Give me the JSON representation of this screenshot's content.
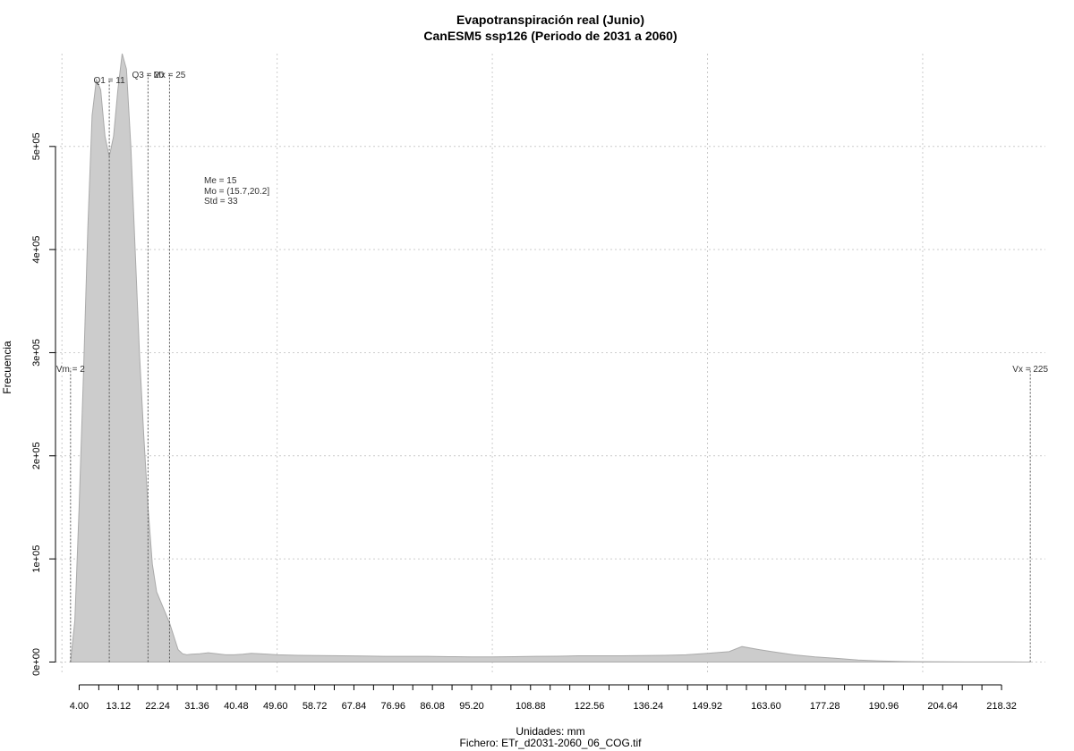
{
  "chart_data": {
    "type": "area",
    "title": "Evapotranspiración real (Junio)",
    "subtitle": "CanESM5 ssp126 (Periodo de 2031 a 2060)",
    "xlabel": "Unidades: mm",
    "ylabel": "Frecuencia",
    "file": "Fichero: ETr_d2031-2060_06_COG.tif",
    "xlim": [
      -1.5,
      228.5
    ],
    "ylim": [
      -10000,
      590000
    ],
    "x_ticks": [
      4.0,
      8.56,
      13.12,
      17.68,
      22.24,
      26.8,
      31.36,
      35.92,
      40.48,
      45.04,
      49.6,
      54.16,
      58.72,
      63.28,
      67.84,
      72.4,
      76.96,
      81.52,
      86.08,
      90.64,
      95.2,
      99.76,
      104.32,
      108.88,
      113.44,
      118.0,
      122.56,
      127.12,
      131.68,
      136.24,
      140.8,
      145.36,
      149.92,
      154.48,
      159.04,
      163.6,
      168.16,
      172.72,
      177.28,
      181.84,
      186.4,
      190.96,
      195.52,
      200.08,
      204.64,
      209.2,
      213.76,
      218.32
    ],
    "x_tick_labels": [
      "4.00",
      "",
      "13.12",
      "",
      "22.24",
      "",
      "31.36",
      "",
      "40.48",
      "",
      "49.60",
      "",
      "58.72",
      "",
      "67.84",
      "",
      "76.96",
      "",
      "86.08",
      "",
      "95.20",
      "",
      "",
      "108.88",
      "",
      "",
      "122.56",
      "",
      "",
      "136.24",
      "",
      "",
      "149.92",
      "",
      "",
      "163.60",
      "",
      "",
      "177.28",
      "",
      "",
      "190.96",
      "",
      "",
      "204.64",
      "",
      "",
      "218.32"
    ],
    "y_ticks": [
      0,
      100000,
      200000,
      300000,
      400000,
      500000
    ],
    "y_tick_labels": [
      "0e+00",
      "1e+05",
      "2e+05",
      "3e+05",
      "4e+05",
      "5e+05"
    ],
    "x_grid": [
      0,
      50,
      100,
      150,
      200
    ],
    "y_grid": [
      0,
      100000,
      200000,
      300000,
      400000,
      500000
    ],
    "grid": true,
    "fill_color": "#cccccc",
    "stroke_color": "#aaaaaa",
    "series": [
      {
        "x": [
          2,
          3,
          4,
          5,
          6,
          7,
          8,
          9,
          10,
          11,
          12,
          13,
          14,
          15,
          16,
          17,
          18,
          19,
          20,
          21,
          22,
          23,
          24,
          25,
          26,
          27,
          28,
          29,
          30,
          32,
          34,
          36,
          38,
          40,
          42,
          44,
          46,
          48,
          50,
          55,
          60,
          65,
          70,
          75,
          80,
          85,
          90,
          95,
          100,
          105,
          110,
          115,
          120,
          125,
          130,
          135,
          140,
          145,
          150,
          155,
          158,
          162,
          165,
          170,
          175,
          180,
          185,
          190,
          195,
          200,
          205,
          210,
          215,
          220,
          225
        ],
        "y": [
          0,
          40000,
          150000,
          280000,
          420000,
          530000,
          565000,
          555000,
          510000,
          490000,
          510000,
          555000,
          590000,
          575000,
          500000,
          400000,
          300000,
          220000,
          150000,
          95000,
          68000,
          58000,
          48000,
          38000,
          25000,
          12000,
          8000,
          7000,
          7500,
          8000,
          9000,
          8000,
          7000,
          7000,
          7500,
          8500,
          8000,
          7500,
          7000,
          6500,
          6200,
          6000,
          5800,
          5500,
          5500,
          5500,
          5200,
          5000,
          5000,
          5200,
          5500,
          5600,
          6000,
          6000,
          6000,
          6200,
          6500,
          7000,
          8500,
          10000,
          15000,
          12000,
          10000,
          7000,
          5000,
          3500,
          2000,
          1000,
          500,
          300,
          200,
          100,
          50,
          20,
          0
        ]
      }
    ],
    "vlines": [
      {
        "x": 2,
        "label": "Vm = 2",
        "y_top": 285000
      },
      {
        "x": 11,
        "label": "Q1 = 11",
        "y_top": 565000
      },
      {
        "x": 20,
        "label": "Q3 = 20",
        "y_top": 570000
      },
      {
        "x": 25,
        "label": "Mx = 25",
        "y_top": 570000
      },
      {
        "x": 225,
        "label": "Vx = 225",
        "y_top": 285000
      }
    ],
    "stats": [
      "Me = 15",
      "Mo = (15.7,20.2]",
      "Std = 33"
    ]
  }
}
